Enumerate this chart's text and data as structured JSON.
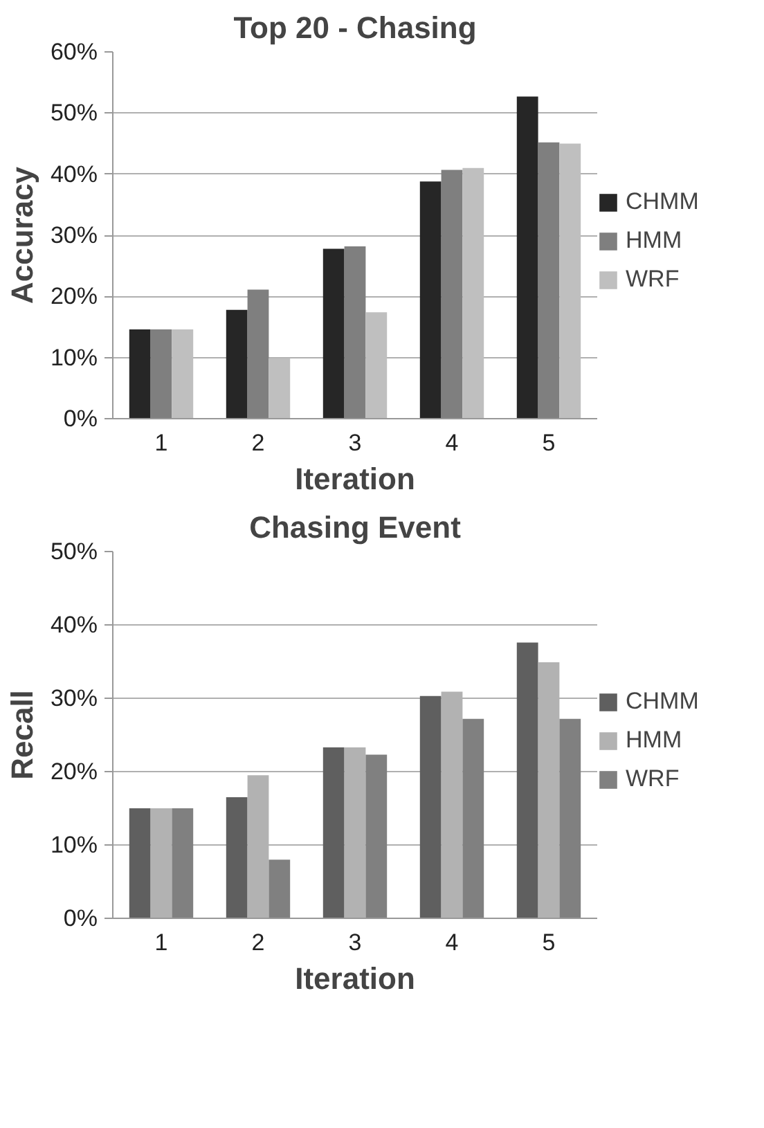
{
  "chart_data": [
    {
      "type": "bar",
      "title": "Top 20 - Chasing",
      "xlabel": "Iteration",
      "ylabel": "Accuracy",
      "categories": [
        "1",
        "2",
        "3",
        "4",
        "5"
      ],
      "series": [
        {
          "name": "CHMM",
          "color": "#262626",
          "values": [
            14.6,
            17.8,
            27.8,
            38.8,
            52.7
          ]
        },
        {
          "name": "HMM",
          "color": "#7f7f7f",
          "values": [
            14.6,
            21.1,
            28.2,
            40.7,
            45.2
          ]
        },
        {
          "name": "WRF",
          "color": "#bfbfbf",
          "values": [
            14.6,
            9.9,
            17.4,
            41.0,
            45.0
          ]
        }
      ],
      "ylim": [
        0,
        60
      ],
      "yticks": [
        {
          "value": 0,
          "label": "0%"
        },
        {
          "value": 10,
          "label": "10%"
        },
        {
          "value": 20,
          "label": "20%"
        },
        {
          "value": 30,
          "label": "30%"
        },
        {
          "value": 40,
          "label": "40%"
        },
        {
          "value": 50,
          "label": "50%"
        },
        {
          "value": 60,
          "label": "60%"
        }
      ],
      "grid": "y",
      "legend": "right"
    },
    {
      "type": "bar",
      "title": "Chasing Event",
      "xlabel": "Iteration",
      "ylabel": "Recall",
      "categories": [
        "1",
        "2",
        "3",
        "4",
        "5"
      ],
      "series": [
        {
          "name": "CHMM",
          "color": "#5f5f5f",
          "values": [
            15.0,
            16.5,
            23.3,
            30.3,
            37.6
          ]
        },
        {
          "name": "HMM",
          "color": "#b2b2b2",
          "values": [
            15.0,
            19.5,
            23.3,
            30.9,
            34.9
          ]
        },
        {
          "name": "WRF",
          "color": "#808080",
          "values": [
            15.0,
            8.0,
            22.3,
            27.2,
            27.2
          ]
        }
      ],
      "ylim": [
        0,
        50
      ],
      "yticks": [
        {
          "value": 0,
          "label": "0%"
        },
        {
          "value": 10,
          "label": "10%"
        },
        {
          "value": 20,
          "label": "20%"
        },
        {
          "value": 30,
          "label": "30%"
        },
        {
          "value": 40,
          "label": "40%"
        },
        {
          "value": 50,
          "label": "50%"
        }
      ],
      "grid": "y",
      "legend": "right"
    }
  ]
}
